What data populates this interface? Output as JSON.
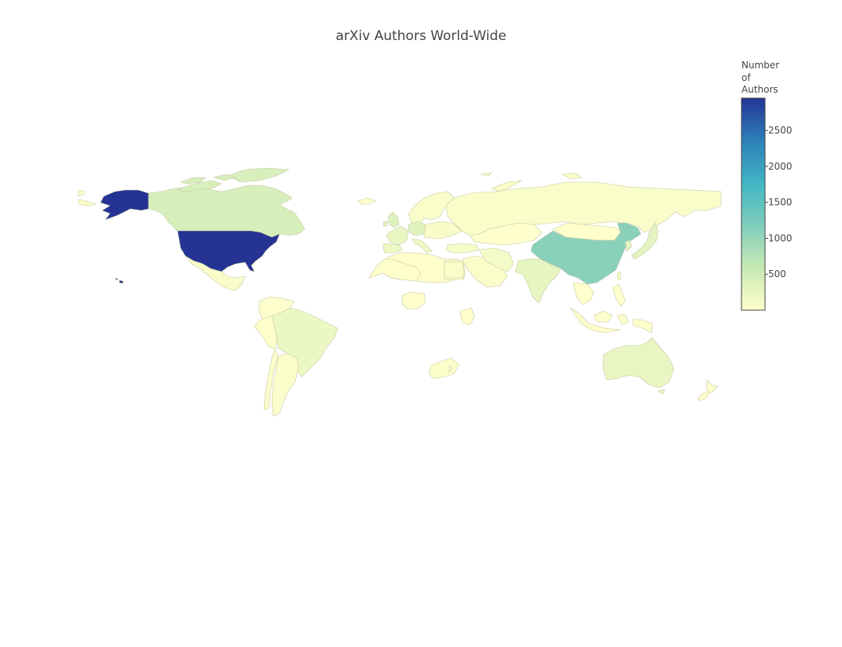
{
  "title": "arXiv Authors World-Wide",
  "colorbar": {
    "title_lines": [
      "Number",
      "of",
      "Authors"
    ],
    "min": 0,
    "max": 2950,
    "ticks": [
      500,
      1000,
      1500,
      2000,
      2500
    ],
    "colorscale": [
      "#ffffcc",
      "#c7e9b4",
      "#7fcdbb",
      "#41b6c4",
      "#2c7fb8",
      "#253494"
    ]
  },
  "chart_data": {
    "type": "choropleth",
    "metric": "Number of Authors",
    "zmax": 2950,
    "regions": [
      {
        "name": "United States",
        "value": 2950
      },
      {
        "name": "China",
        "value": 1100
      },
      {
        "name": "Canada",
        "value": 420
      },
      {
        "name": "Germany",
        "value": 330
      },
      {
        "name": "United Kingdom",
        "value": 350
      },
      {
        "name": "France",
        "value": 240
      },
      {
        "name": "Italy",
        "value": 170
      },
      {
        "name": "Spain",
        "value": 190
      },
      {
        "name": "Switzerland",
        "value": 160
      },
      {
        "name": "Netherlands",
        "value": 150
      },
      {
        "name": "Japan",
        "value": 300
      },
      {
        "name": "South Korea",
        "value": 280
      },
      {
        "name": "India",
        "value": 260
      },
      {
        "name": "Australia",
        "value": 230
      },
      {
        "name": "Brazil",
        "value": 200
      },
      {
        "name": "Russia",
        "value": 60
      },
      {
        "name": "Iran",
        "value": 110
      },
      {
        "name": "Turkey",
        "value": 90
      },
      {
        "name": "Mexico",
        "value": 50
      },
      {
        "name": "Argentina",
        "value": 40
      },
      {
        "name": "Chile",
        "value": 45
      },
      {
        "name": "South Africa",
        "value": 40
      },
      {
        "name": "Egypt",
        "value": 30
      },
      {
        "name": "Saudi Arabia",
        "value": 55
      },
      {
        "name": "Israel",
        "value": 120
      },
      {
        "name": "Singapore",
        "value": 110
      },
      {
        "name": "Taiwan",
        "value": 130
      },
      {
        "name": "New Zealand",
        "value": 35
      },
      {
        "name": "Indonesia",
        "value": 20
      },
      {
        "name": "Poland",
        "value": 70
      },
      {
        "name": "Sweden",
        "value": 90
      },
      {
        "name": "Norway",
        "value": 60
      },
      {
        "name": "Finland",
        "value": 50
      },
      {
        "name": "Kazakhstan",
        "value": 10
      },
      {
        "name": "Mongolia",
        "value": 5
      },
      {
        "name": "Colombia",
        "value": 25
      },
      {
        "name": "Peru",
        "value": 15
      },
      {
        "name": "Venezuela",
        "value": 10
      },
      {
        "name": "Algeria",
        "value": 15
      },
      {
        "name": "Nigeria",
        "value": 15
      },
      {
        "name": "Madagascar",
        "value": 5
      }
    ]
  }
}
